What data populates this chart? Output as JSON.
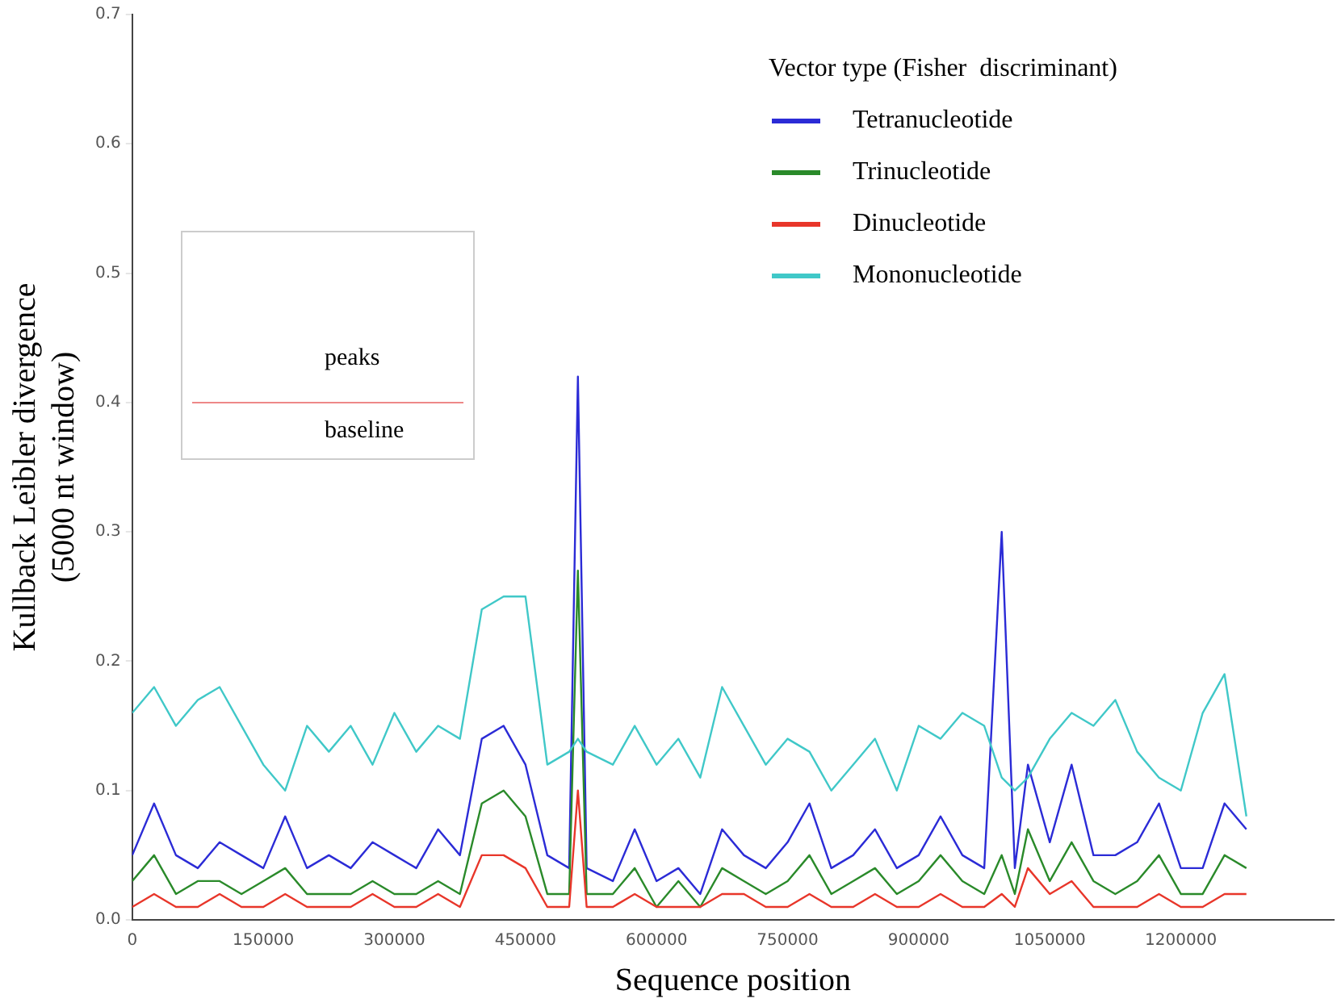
{
  "chart_data": {
    "type": "line",
    "xlabel": "Sequence position",
    "ylabel": "Kullback Leibler divergence (5000 nt window)",
    "legend_title": "Vector type (Fisher  discriminant)",
    "legend": "top right",
    "grid": false,
    "marker": "none",
    "line_style": "solid",
    "xlim": [
      0,
      1375000
    ],
    "xticks": [
      0,
      150000,
      300000,
      450000,
      600000,
      750000,
      900000,
      1050000,
      1200000
    ],
    "ylim": [
      0,
      0.7
    ],
    "yticks": [
      {
        "value": 0,
        "label": "0.0"
      },
      0.1,
      0.2,
      0.3,
      0.4,
      0.5,
      0.6,
      0.7
    ],
    "x": [
      0,
      25000,
      50000,
      75000,
      100000,
      125000,
      150000,
      175000,
      200000,
      225000,
      250000,
      275000,
      300000,
      325000,
      350000,
      375000,
      400000,
      425000,
      450000,
      475000,
      500000,
      510000,
      520000,
      550000,
      575000,
      600000,
      625000,
      650000,
      675000,
      700000,
      725000,
      750000,
      775000,
      800000,
      825000,
      850000,
      875000,
      900000,
      925000,
      950000,
      975000,
      995000,
      1010000,
      1025000,
      1050000,
      1075000,
      1100000,
      1125000,
      1150000,
      1175000,
      1200000,
      1225000,
      1250000,
      1275000
    ],
    "series": [
      {
        "name": "Tetranucleotide",
        "color": "#2b2bd6",
        "values": [
          0.05,
          0.09,
          0.05,
          0.04,
          0.06,
          0.05,
          0.04,
          0.08,
          0.04,
          0.05,
          0.04,
          0.06,
          0.05,
          0.04,
          0.07,
          0.05,
          0.14,
          0.15,
          0.12,
          0.05,
          0.04,
          0.42,
          0.04,
          0.03,
          0.07,
          0.03,
          0.04,
          0.02,
          0.07,
          0.05,
          0.04,
          0.06,
          0.09,
          0.04,
          0.05,
          0.07,
          0.04,
          0.05,
          0.08,
          0.05,
          0.04,
          0.3,
          0.04,
          0.12,
          0.06,
          0.12,
          0.05,
          0.05,
          0.06,
          0.09,
          0.04,
          0.04,
          0.09,
          0.07
        ]
      },
      {
        "name": "Trinucleotide",
        "color": "#2a8a2a",
        "values": [
          0.03,
          0.05,
          0.02,
          0.03,
          0.03,
          0.02,
          0.03,
          0.04,
          0.02,
          0.02,
          0.02,
          0.03,
          0.02,
          0.02,
          0.03,
          0.02,
          0.09,
          0.1,
          0.08,
          0.02,
          0.02,
          0.27,
          0.02,
          0.02,
          0.04,
          0.01,
          0.03,
          0.01,
          0.04,
          0.03,
          0.02,
          0.03,
          0.05,
          0.02,
          0.03,
          0.04,
          0.02,
          0.03,
          0.05,
          0.03,
          0.02,
          0.05,
          0.02,
          0.07,
          0.03,
          0.06,
          0.03,
          0.02,
          0.03,
          0.05,
          0.02,
          0.02,
          0.05,
          0.04
        ]
      },
      {
        "name": "Dinucleotide",
        "color": "#e8362a",
        "values": [
          0.01,
          0.02,
          0.01,
          0.01,
          0.02,
          0.01,
          0.01,
          0.02,
          0.01,
          0.01,
          0.01,
          0.02,
          0.01,
          0.01,
          0.02,
          0.01,
          0.05,
          0.05,
          0.04,
          0.01,
          0.01,
          0.1,
          0.01,
          0.01,
          0.02,
          0.01,
          0.01,
          0.01,
          0.02,
          0.02,
          0.01,
          0.01,
          0.02,
          0.01,
          0.01,
          0.02,
          0.01,
          0.01,
          0.02,
          0.01,
          0.01,
          0.02,
          0.01,
          0.04,
          0.02,
          0.03,
          0.01,
          0.01,
          0.01,
          0.02,
          0.01,
          0.01,
          0.02,
          0.02
        ]
      },
      {
        "name": "Mononucleotide",
        "color": "#40c8c8",
        "values": [
          0.16,
          0.18,
          0.15,
          0.17,
          0.18,
          0.15,
          0.12,
          0.1,
          0.15,
          0.13,
          0.15,
          0.12,
          0.16,
          0.13,
          0.15,
          0.14,
          0.24,
          0.25,
          0.25,
          0.12,
          0.13,
          0.14,
          0.13,
          0.12,
          0.15,
          0.12,
          0.14,
          0.11,
          0.18,
          0.15,
          0.12,
          0.14,
          0.13,
          0.1,
          0.12,
          0.14,
          0.1,
          0.15,
          0.14,
          0.16,
          0.15,
          0.11,
          0.1,
          0.11,
          0.14,
          0.16,
          0.15,
          0.17,
          0.13,
          0.11,
          0.1,
          0.16,
          0.19,
          0.08
        ]
      }
    ],
    "annotations": [
      "peaks",
      "baseline"
    ]
  }
}
